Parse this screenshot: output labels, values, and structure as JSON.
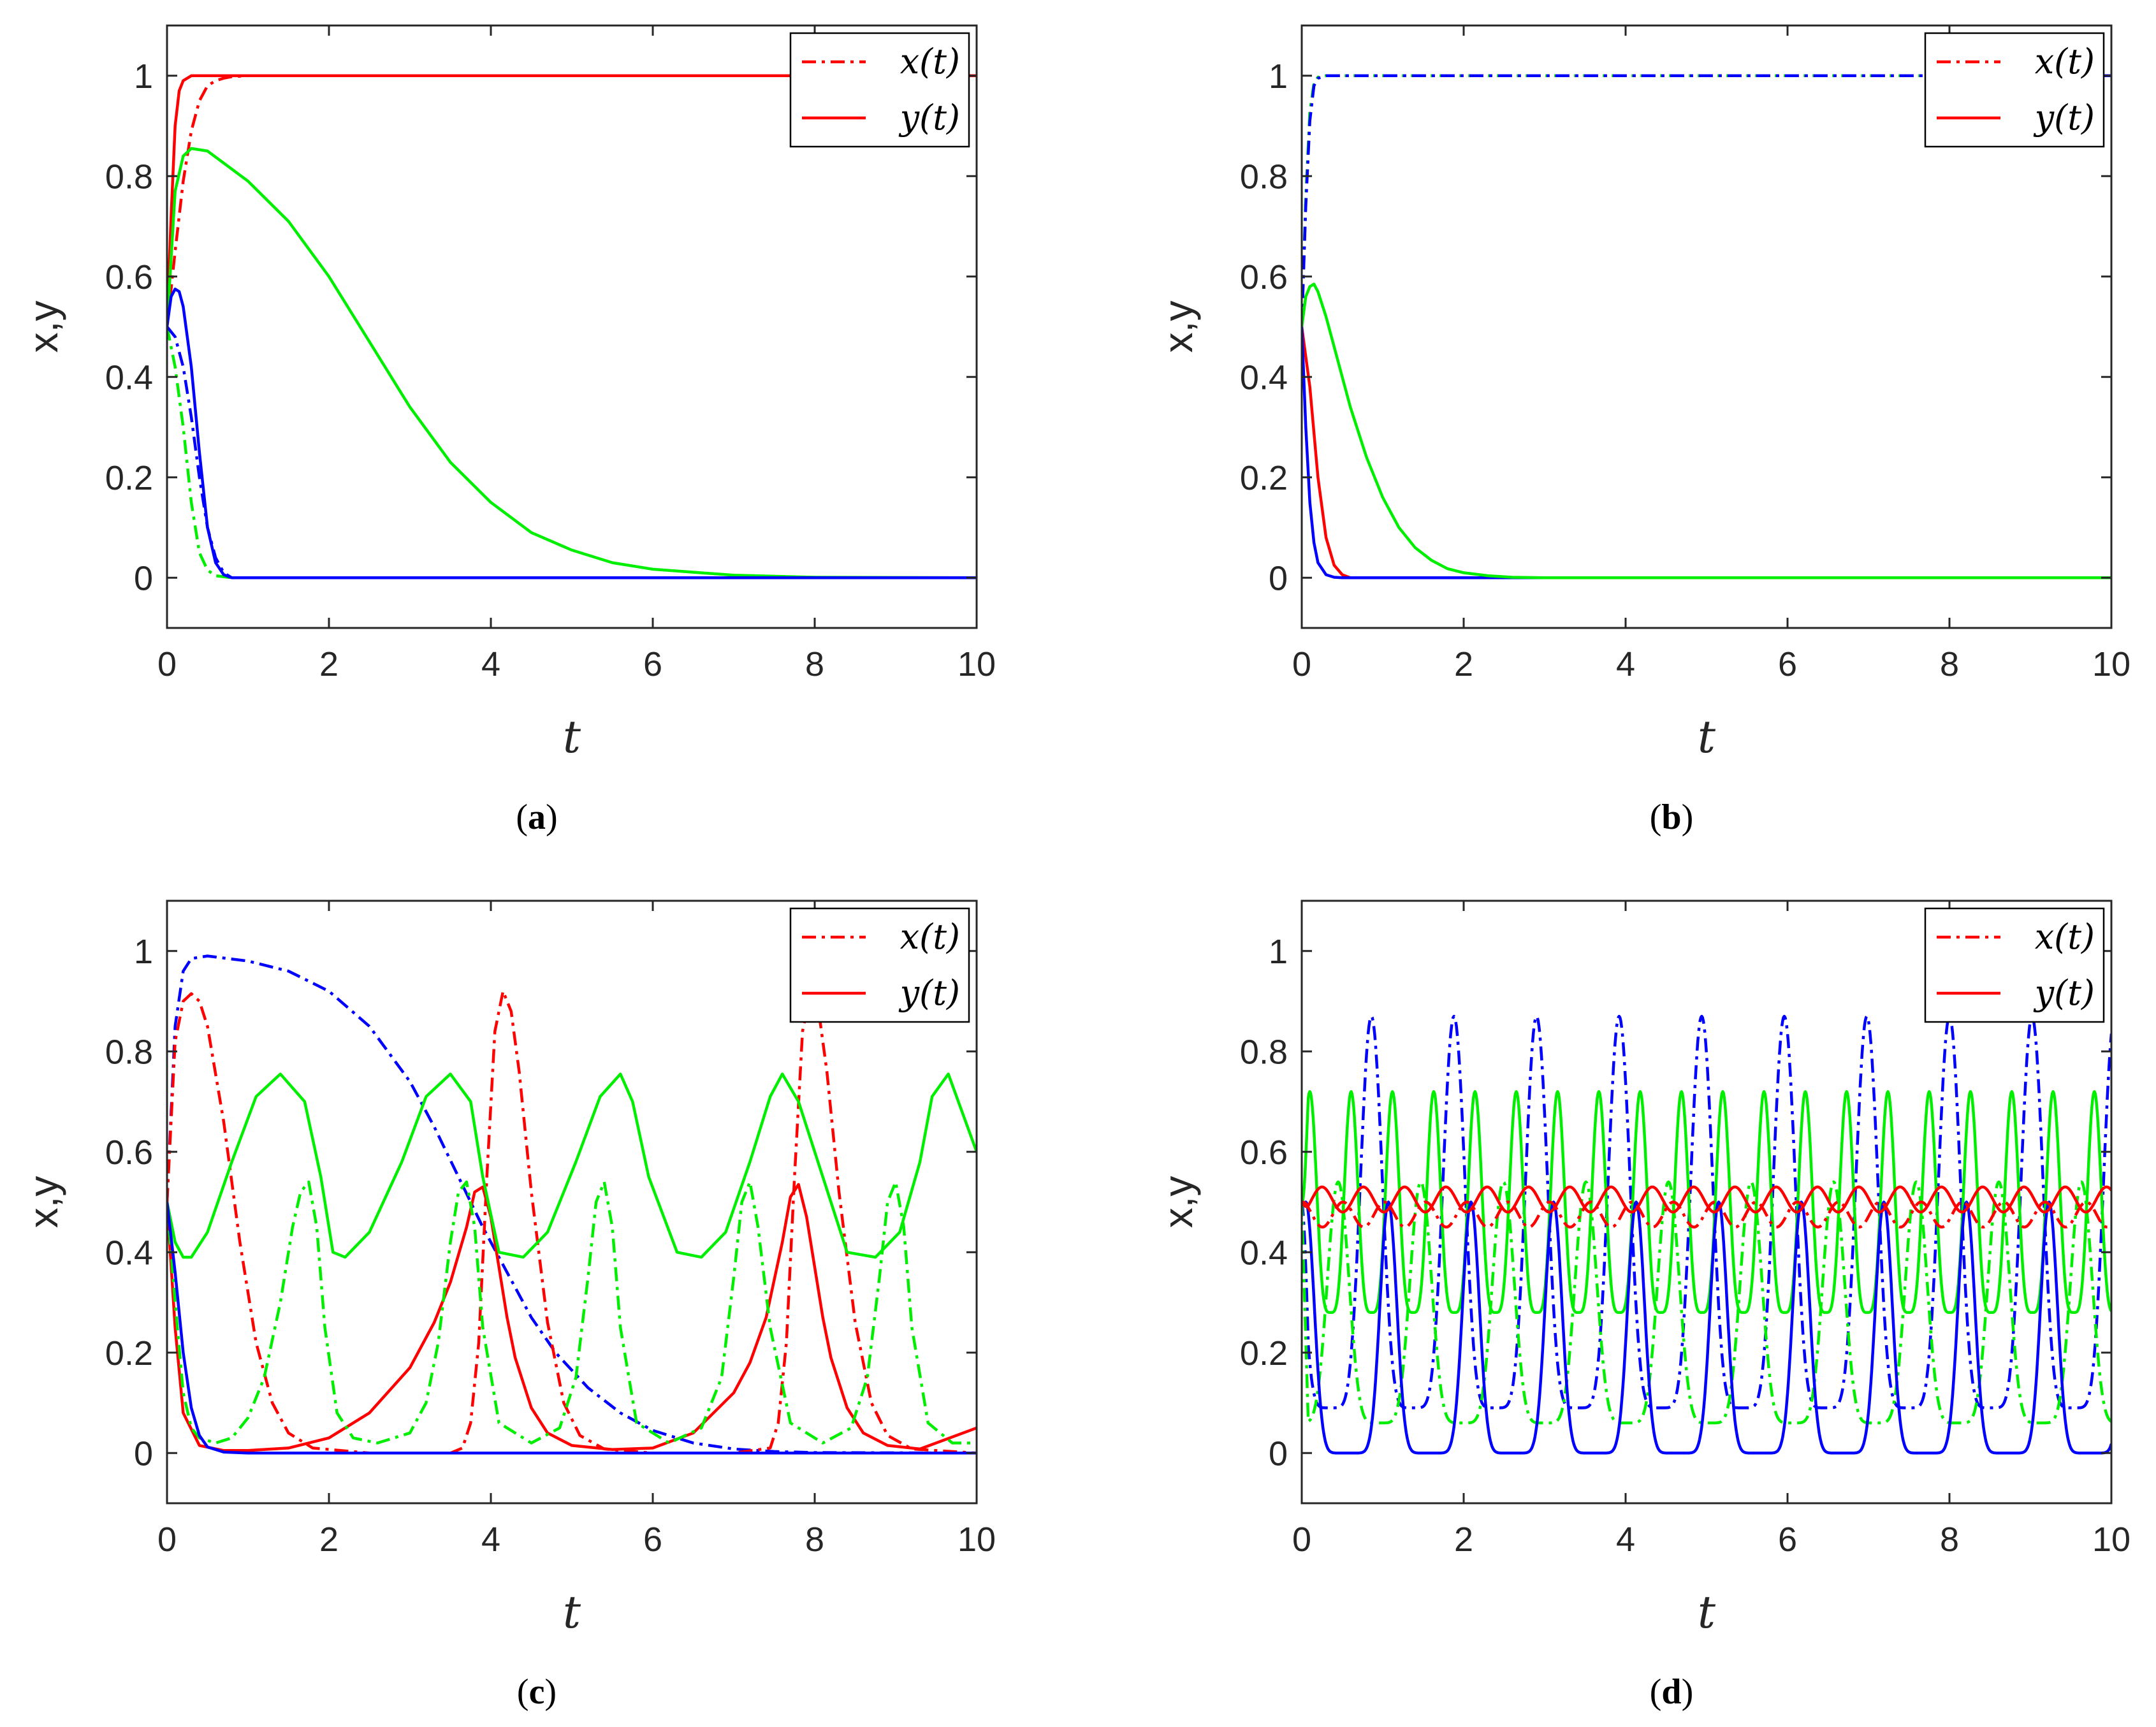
{
  "figure": {
    "colors": {
      "red": "#ff0000",
      "green": "#00ee00",
      "blue": "#0000ff",
      "axis": "#262626"
    },
    "legend_entries": [
      {
        "label": "x(t)",
        "style": "dashdot",
        "color": "#ff0000"
      },
      {
        "label": "y(t)",
        "style": "solid",
        "color": "#ff0000"
      }
    ]
  },
  "chart_data": [
    {
      "id": "a",
      "type": "line",
      "caption_letter": "a",
      "xlabel": "t",
      "ylabel": "x,y",
      "xlim": [
        0,
        10
      ],
      "ylim": [
        -0.1,
        1.1
      ],
      "xticks": [
        "0",
        "2",
        "4",
        "6",
        "8",
        "10"
      ],
      "yticks": [
        "0",
        "0.2",
        "0.4",
        "0.6",
        "0.8",
        "1"
      ],
      "legend": [
        "x(t)",
        "y(t)"
      ],
      "series": [
        {
          "name": "x red",
          "color": "red",
          "style": "dashdot",
          "x": [
            0,
            0.1,
            0.2,
            0.3,
            0.4,
            0.5,
            0.6,
            0.7,
            0.8,
            1.0,
            10
          ],
          "y": [
            0.5,
            0.65,
            0.79,
            0.89,
            0.95,
            0.98,
            0.99,
            0.995,
            0.998,
            1.0,
            1.0
          ]
        },
        {
          "name": "y red",
          "color": "red",
          "style": "solid",
          "x": [
            0,
            0.05,
            0.1,
            0.15,
            0.2,
            0.3,
            0.4,
            10
          ],
          "y": [
            0.5,
            0.72,
            0.9,
            0.97,
            0.99,
            1.0,
            1.0,
            1.0
          ]
        },
        {
          "name": "x green",
          "color": "green",
          "style": "dashdot",
          "x": [
            0,
            0.1,
            0.2,
            0.3,
            0.4,
            0.5,
            0.6,
            0.8,
            10
          ],
          "y": [
            0.5,
            0.42,
            0.3,
            0.15,
            0.05,
            0.015,
            0.004,
            0.0,
            0.0
          ]
        },
        {
          "name": "y green",
          "color": "green",
          "style": "solid",
          "x": [
            0,
            0.1,
            0.2,
            0.3,
            0.5,
            1,
            1.5,
            2,
            2.5,
            3,
            3.5,
            4,
            4.5,
            5,
            5.5,
            6,
            7,
            8,
            10
          ],
          "y": [
            0.5,
            0.77,
            0.84,
            0.855,
            0.85,
            0.79,
            0.71,
            0.6,
            0.47,
            0.34,
            0.23,
            0.15,
            0.09,
            0.055,
            0.03,
            0.017,
            0.005,
            0.001,
            0.0
          ]
        },
        {
          "name": "x blue",
          "color": "blue",
          "style": "dashdot",
          "x": [
            0,
            0.1,
            0.2,
            0.3,
            0.4,
            0.5,
            0.6,
            0.7,
            0.8,
            10
          ],
          "y": [
            0.5,
            0.48,
            0.42,
            0.32,
            0.2,
            0.1,
            0.04,
            0.01,
            0.0,
            0.0
          ]
        },
        {
          "name": "y blue",
          "color": "blue",
          "style": "solid",
          "x": [
            0,
            0.05,
            0.1,
            0.15,
            0.2,
            0.3,
            0.4,
            0.5,
            0.6,
            0.7,
            0.8,
            10
          ],
          "y": [
            0.5,
            0.56,
            0.575,
            0.57,
            0.54,
            0.42,
            0.25,
            0.1,
            0.03,
            0.006,
            0.0,
            0.0
          ]
        }
      ]
    },
    {
      "id": "b",
      "type": "line",
      "caption_letter": "b",
      "xlabel": "t",
      "ylabel": "x,y",
      "xlim": [
        0,
        10
      ],
      "ylim": [
        -0.1,
        1.1
      ],
      "xticks": [
        "0",
        "2",
        "4",
        "6",
        "8",
        "10"
      ],
      "yticks": [
        "0",
        "0.2",
        "0.4",
        "0.6",
        "0.8",
        "1"
      ],
      "legend": [
        "x(t)",
        "y(t)"
      ],
      "series": [
        {
          "name": "x red",
          "color": "red",
          "style": "dashdot",
          "x": [
            0,
            0.05,
            0.1,
            0.15,
            0.2,
            0.3,
            10
          ],
          "y": [
            0.5,
            0.75,
            0.92,
            0.98,
            0.995,
            1.0,
            1.0
          ]
        },
        {
          "name": "x green",
          "color": "green",
          "style": "dashdot",
          "x": [
            0,
            0.05,
            0.1,
            0.15,
            0.2,
            0.3,
            10
          ],
          "y": [
            0.5,
            0.76,
            0.93,
            0.985,
            0.997,
            1.0,
            1.0
          ]
        },
        {
          "name": "x blue",
          "color": "blue",
          "style": "dashdot",
          "x": [
            0,
            0.05,
            0.1,
            0.15,
            0.2,
            0.3,
            10
          ],
          "y": [
            0.5,
            0.74,
            0.91,
            0.98,
            0.995,
            1.0,
            1.0
          ]
        },
        {
          "name": "y red",
          "color": "red",
          "style": "solid",
          "x": [
            0,
            0.1,
            0.2,
            0.3,
            0.4,
            0.5,
            0.6,
            10
          ],
          "y": [
            0.5,
            0.38,
            0.2,
            0.08,
            0.025,
            0.006,
            0.0,
            0.0
          ]
        },
        {
          "name": "y blue",
          "color": "blue",
          "style": "solid",
          "x": [
            0,
            0.05,
            0.1,
            0.15,
            0.2,
            0.3,
            0.4,
            0.5,
            10
          ],
          "y": [
            0.5,
            0.3,
            0.15,
            0.07,
            0.03,
            0.006,
            0.001,
            0.0,
            0.0
          ]
        },
        {
          "name": "y green",
          "color": "green",
          "style": "solid",
          "x": [
            0,
            0.05,
            0.1,
            0.15,
            0.2,
            0.3,
            0.4,
            0.5,
            0.6,
            0.8,
            1.0,
            1.2,
            1.4,
            1.6,
            1.8,
            2.0,
            2.3,
            2.6,
            3.0,
            10
          ],
          "y": [
            0.5,
            0.56,
            0.58,
            0.585,
            0.57,
            0.52,
            0.46,
            0.4,
            0.34,
            0.24,
            0.16,
            0.1,
            0.06,
            0.035,
            0.018,
            0.01,
            0.004,
            0.001,
            0.0,
            0.0
          ]
        }
      ]
    },
    {
      "id": "c",
      "type": "line",
      "caption_letter": "c",
      "xlabel": "t",
      "ylabel": "x,y",
      "xlim": [
        0,
        10
      ],
      "ylim": [
        -0.1,
        1.1
      ],
      "xticks": [
        "0",
        "2",
        "4",
        "6",
        "8",
        "10"
      ],
      "yticks": [
        "0",
        "0.2",
        "0.4",
        "0.6",
        "0.8",
        "1"
      ],
      "legend": [
        "x(t)",
        "y(t)"
      ],
      "series": [
        {
          "name": "x blue",
          "color": "blue",
          "style": "dashdot",
          "x": [
            0,
            0.1,
            0.2,
            0.3,
            0.5,
            1,
            1.5,
            2,
            2.5,
            3,
            3.3,
            3.6,
            3.9,
            4.2,
            4.5,
            4.8,
            5.2,
            5.6,
            6,
            6.5,
            7,
            7.5,
            8,
            10
          ],
          "y": [
            0.5,
            0.85,
            0.96,
            0.985,
            0.99,
            0.98,
            0.96,
            0.92,
            0.85,
            0.74,
            0.65,
            0.55,
            0.45,
            0.36,
            0.27,
            0.2,
            0.13,
            0.08,
            0.045,
            0.02,
            0.008,
            0.003,
            0.001,
            0.0
          ]
        },
        {
          "name": "x red",
          "color": "red",
          "style": "dashdot",
          "x": [
            0,
            0.1,
            0.2,
            0.3,
            0.4,
            0.5,
            0.7,
            0.9,
            1.1,
            1.3,
            1.5,
            1.8,
            2.5,
            3.5,
            3.65,
            3.75,
            3.85,
            3.95,
            4.05,
            4.15,
            4.25,
            4.35,
            4.5,
            4.7,
            4.9,
            5.1,
            5.4,
            6,
            7,
            7.45,
            7.55,
            7.65,
            7.75,
            7.85,
            7.95,
            8.05,
            8.15,
            8.3,
            8.5,
            8.7,
            8.9,
            9.2,
            10
          ],
          "y": [
            0.5,
            0.82,
            0.9,
            0.915,
            0.9,
            0.85,
            0.66,
            0.42,
            0.22,
            0.1,
            0.04,
            0.01,
            0.0,
            0.0,
            0.01,
            0.06,
            0.22,
            0.55,
            0.84,
            0.92,
            0.88,
            0.76,
            0.52,
            0.26,
            0.1,
            0.035,
            0.008,
            0.0,
            0.0,
            0.01,
            0.06,
            0.22,
            0.55,
            0.84,
            0.92,
            0.88,
            0.76,
            0.52,
            0.26,
            0.1,
            0.035,
            0.008,
            0.0
          ]
        },
        {
          "name": "y red",
          "color": "red",
          "style": "solid",
          "x": [
            0,
            0.1,
            0.2,
            0.4,
            0.7,
            1,
            1.5,
            2,
            2.5,
            3,
            3.3,
            3.5,
            3.7,
            3.8,
            3.9,
            4.0,
            4.1,
            4.2,
            4.3,
            4.5,
            4.7,
            5,
            5.5,
            6,
            6.5,
            7,
            7.2,
            7.4,
            7.6,
            7.7,
            7.8,
            7.9,
            8.0,
            8.1,
            8.2,
            8.4,
            8.6,
            8.9,
            9.3,
            10
          ],
          "y": [
            0.5,
            0.25,
            0.08,
            0.015,
            0.005,
            0.005,
            0.01,
            0.03,
            0.08,
            0.17,
            0.26,
            0.34,
            0.45,
            0.52,
            0.53,
            0.47,
            0.37,
            0.27,
            0.19,
            0.09,
            0.04,
            0.015,
            0.007,
            0.01,
            0.04,
            0.12,
            0.18,
            0.27,
            0.42,
            0.51,
            0.535,
            0.47,
            0.37,
            0.27,
            0.19,
            0.09,
            0.04,
            0.015,
            0.008,
            0.05
          ]
        },
        {
          "name": "y green",
          "color": "green",
          "style": "solid",
          "x": [
            0,
            0.1,
            0.2,
            0.3,
            0.5,
            0.8,
            1.1,
            1.4,
            1.7,
            1.9,
            2.05,
            2.2,
            2.5,
            2.9,
            3.2,
            3.5,
            3.75,
            3.9,
            4.1,
            4.4,
            4.7,
            5.05,
            5.35,
            5.6,
            5.75,
            5.95,
            6.3,
            6.6,
            6.9,
            7.2,
            7.45,
            7.6,
            7.8,
            8.1,
            8.4,
            8.75,
            9.05,
            9.3,
            9.45,
            9.65,
            10
          ],
          "y": [
            0.5,
            0.42,
            0.39,
            0.39,
            0.44,
            0.58,
            0.71,
            0.755,
            0.7,
            0.55,
            0.4,
            0.39,
            0.44,
            0.58,
            0.71,
            0.755,
            0.7,
            0.55,
            0.4,
            0.39,
            0.44,
            0.58,
            0.71,
            0.755,
            0.7,
            0.55,
            0.4,
            0.39,
            0.44,
            0.58,
            0.71,
            0.755,
            0.7,
            0.55,
            0.4,
            0.39,
            0.44,
            0.58,
            0.71,
            0.755,
            0.6
          ]
        },
        {
          "name": "x green",
          "color": "green",
          "style": "dashdot",
          "x": [
            0,
            0.1,
            0.2,
            0.3,
            0.4,
            0.6,
            0.8,
            1.0,
            1.2,
            1.4,
            1.55,
            1.65,
            1.75,
            1.85,
            1.95,
            2.1,
            2.3,
            2.6,
            3.0,
            3.2,
            3.35,
            3.5,
            3.6,
            3.7,
            3.8,
            3.9,
            4.1,
            4.5,
            4.85,
            5.05,
            5.2,
            5.3,
            5.4,
            5.5,
            5.6,
            5.8,
            6.2,
            6.6,
            6.85,
            7.0,
            7.1,
            7.2,
            7.3,
            7.45,
            7.7,
            8.1,
            8.45,
            8.65,
            8.8,
            8.9,
            9.0,
            9.1,
            9.2,
            9.4,
            9.7,
            10
          ],
          "y": [
            0.5,
            0.3,
            0.12,
            0.05,
            0.03,
            0.02,
            0.03,
            0.07,
            0.15,
            0.3,
            0.45,
            0.52,
            0.54,
            0.45,
            0.25,
            0.08,
            0.03,
            0.02,
            0.04,
            0.1,
            0.22,
            0.42,
            0.52,
            0.54,
            0.45,
            0.25,
            0.06,
            0.02,
            0.05,
            0.15,
            0.35,
            0.5,
            0.54,
            0.45,
            0.25,
            0.06,
            0.02,
            0.05,
            0.15,
            0.35,
            0.5,
            0.54,
            0.45,
            0.25,
            0.06,
            0.02,
            0.05,
            0.15,
            0.35,
            0.5,
            0.54,
            0.45,
            0.25,
            0.06,
            0.02,
            0.02
          ]
        },
        {
          "name": "y blue",
          "color": "blue",
          "style": "solid",
          "x": [
            0,
            0.1,
            0.2,
            0.3,
            0.4,
            0.5,
            0.7,
            1.0,
            10
          ],
          "y": [
            0.5,
            0.36,
            0.2,
            0.09,
            0.035,
            0.012,
            0.002,
            0.0,
            0.0
          ]
        }
      ]
    },
    {
      "id": "d",
      "type": "line",
      "caption_letter": "d",
      "xlabel": "t",
      "ylabel": "x,y",
      "xlim": [
        0,
        10
      ],
      "ylim": [
        -0.1,
        1.1
      ],
      "xticks": [
        "0",
        "2",
        "4",
        "6",
        "8",
        "10"
      ],
      "yticks": [
        "0",
        "0.2",
        "0.4",
        "0.6",
        "0.8",
        "1"
      ],
      "legend": [
        "x(t)",
        "y(t)"
      ],
      "oscillations": [
        {
          "name": "x blue",
          "color": "blue",
          "style": "dashdot",
          "period": 1.02,
          "phase": 0.86,
          "low": 0.09,
          "high": 0.87,
          "sharpness": 3
        },
        {
          "name": "y green",
          "color": "green",
          "style": "solid",
          "period": 0.51,
          "phase": 0.1,
          "low": 0.28,
          "high": 0.72,
          "sharpness": 2
        },
        {
          "name": "x green",
          "color": "green",
          "style": "dashdot",
          "period": 1.02,
          "phase": 0.45,
          "low": 0.06,
          "high": 0.54,
          "sharpness": 3
        },
        {
          "name": "y blue",
          "color": "blue",
          "style": "solid",
          "period": 1.02,
          "phase": 0.05,
          "low": 0.0,
          "high": 0.5,
          "sharpness": 5
        },
        {
          "name": "y red",
          "color": "red",
          "style": "solid",
          "period": 0.51,
          "phase": 0.25,
          "low": 0.48,
          "high": 0.53,
          "sharpness": 1
        },
        {
          "name": "x red",
          "color": "red",
          "style": "dashdot",
          "period": 0.51,
          "phase": 0.0,
          "low": 0.45,
          "high": 0.5,
          "sharpness": 1
        }
      ]
    }
  ]
}
